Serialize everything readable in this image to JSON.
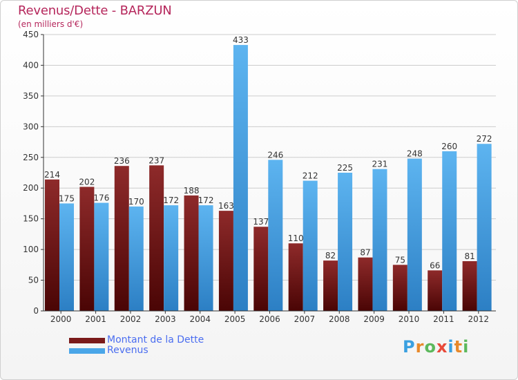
{
  "title": "Revenus/Dette - BARZUN",
  "subtitle": "(en milliers d'€)",
  "logo": {
    "letters": [
      {
        "ch": "P",
        "color": "#3aa0e0"
      },
      {
        "ch": "r",
        "color": "#e8892a"
      },
      {
        "ch": "o",
        "color": "#5cb85c"
      },
      {
        "ch": "x",
        "color": "#e84a3a"
      },
      {
        "ch": "i",
        "color": "#3aa0e0"
      },
      {
        "ch": "t",
        "color": "#e8892a"
      },
      {
        "ch": "i",
        "color": "#5cb85c"
      }
    ]
  },
  "colors": {
    "dette": "#7a1a1a",
    "revenus": "#4aa6e8",
    "axis": "#333333",
    "grid": "#cccccc"
  },
  "chart_data": {
    "type": "bar",
    "title": "Revenus/Dette - BARZUN",
    "subtitle": "(en milliers d'€)",
    "categories": [
      "2000",
      "2001",
      "2002",
      "2003",
      "2004",
      "2005",
      "2006",
      "2007",
      "2008",
      "2009",
      "2010",
      "2011",
      "2012"
    ],
    "series": [
      {
        "name": "Montant de la Dette",
        "values": [
          214,
          202,
          236,
          237,
          188,
          163,
          137,
          110,
          82,
          87,
          75,
          66,
          81
        ]
      },
      {
        "name": "Revenus",
        "values": [
          175,
          176,
          170,
          172,
          172,
          433,
          246,
          212,
          225,
          231,
          248,
          260,
          272
        ]
      }
    ],
    "ylim": [
      0,
      450
    ],
    "yticks": [
      0,
      50,
      100,
      150,
      200,
      250,
      300,
      350,
      400,
      450
    ],
    "grid": true,
    "legend": "bottom-left"
  }
}
